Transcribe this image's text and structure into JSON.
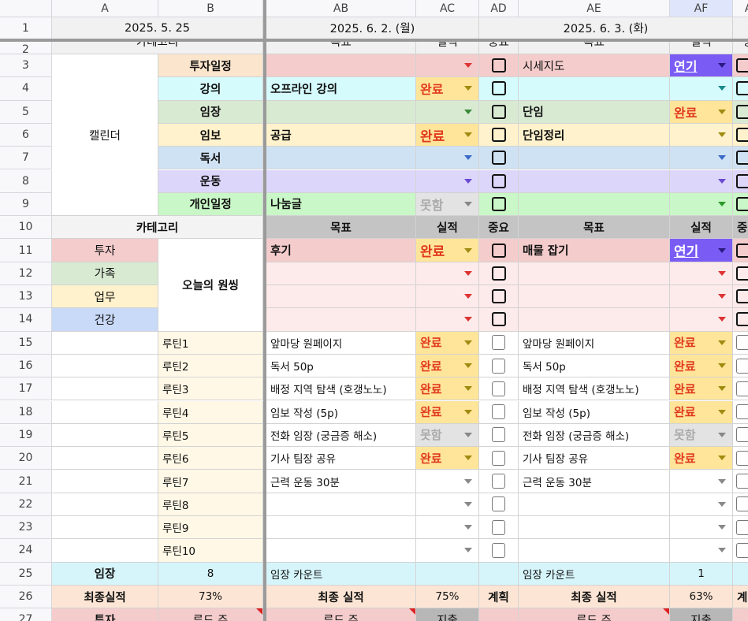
{
  "column_headers": [
    "A",
    "B",
    "AB",
    "AC",
    "AD",
    "AE",
    "AF",
    "A"
  ],
  "selected_column": "AF",
  "status_styles": {
    "완료": {
      "bg": "#ffe599",
      "color": "#e03a1e",
      "arrow": "#a08a10"
    },
    "연기": {
      "bg": "#7a5cf5",
      "color": "#ffffff",
      "arrow": "#2a1a80",
      "underline": true
    },
    "못함": {
      "bg": "#e3e3e3",
      "color": "#aaaaaa",
      "arrow": "#888888"
    }
  },
  "rows": [
    {
      "num": "1",
      "cells": {
        "A": {
          "text": "2025. 5. 25",
          "bg": "#f1f1f1",
          "align": "center"
        },
        "AB": {
          "text": "2025. 6. 2. (월)",
          "bg": "#f1f1f1",
          "align": "center"
        },
        "AD": {
          "text": "2025. 6. 3. (화)",
          "bg": "#f1f1f1",
          "align": "center"
        },
        "AG": {
          "text": "",
          "bg": "#f1f1f1"
        }
      }
    },
    {
      "num": "2",
      "cells": {
        "A": {
          "text": "카테고리",
          "bg": "#f1f1f1",
          "align": "center"
        },
        "AB": {
          "text": "목표",
          "bg": "#f1f1f1",
          "align": "center"
        },
        "AC": {
          "text": "실적",
          "bg": "#f1f1f1",
          "align": "center"
        },
        "AD": {
          "text": "중요",
          "bg": "#f1f1f1",
          "align": "center"
        },
        "AE": {
          "text": "목표",
          "bg": "#f1f1f1",
          "align": "center"
        },
        "AF": {
          "text": "실적",
          "bg": "#f1f1f1",
          "align": "center"
        },
        "AG": {
          "text": "중",
          "bg": "#f1f1f1",
          "align": "center"
        }
      }
    },
    {
      "num": "3",
      "cells": {
        "A": {
          "text": "캘린더",
          "bg": "#ffffff",
          "align": "center"
        },
        "B": {
          "text": "투자일정",
          "bg": "#fce5cd",
          "align": "center",
          "bold": true
        },
        "AB": {
          "text": "",
          "bg": "#f4cccc"
        },
        "AC": {
          "dropdown": true,
          "bg": "#f4cccc",
          "arrow": "#d33"
        },
        "AD": {
          "checkbox": true,
          "bg": "#f4cccc"
        },
        "AE": {
          "text": "시세지도",
          "bg": "#f4cccc"
        },
        "AF": {
          "status": "연기"
        },
        "AG": {
          "checkbox": true,
          "bg": "#f4cccc"
        }
      }
    },
    {
      "num": "4",
      "cells": {
        "B": {
          "text": "강의",
          "bg": "#d6fbfd",
          "align": "center",
          "bold": true
        },
        "AB": {
          "text": "오프라인 강의",
          "bg": "#d6fbfd",
          "bold": true
        },
        "AC": {
          "status": "완료"
        },
        "AD": {
          "checkbox": true,
          "bg": "#d6fbfd"
        },
        "AE": {
          "text": "",
          "bg": "#d6fbfd"
        },
        "AF": {
          "dropdown": true,
          "bg": "#d6fbfd",
          "arrow": "#1a8a8a"
        },
        "AG": {
          "checkbox": true,
          "bg": "#d6fbfd"
        }
      }
    },
    {
      "num": "5",
      "cells": {
        "B": {
          "text": "임장",
          "bg": "#d9ead3",
          "align": "center",
          "bold": true
        },
        "AB": {
          "text": "",
          "bg": "#d9ead3"
        },
        "AC": {
          "dropdown": true,
          "bg": "#d9ead3",
          "arrow": "#3a8a3a"
        },
        "AD": {
          "checkbox": true,
          "bg": "#d9ead3"
        },
        "AE": {
          "text": "단임",
          "bg": "#d9ead3",
          "bold": true
        },
        "AF": {
          "status": "완료"
        },
        "AG": {
          "checkbox": true,
          "bg": "#d9ead3"
        }
      }
    },
    {
      "num": "6",
      "cells": {
        "B": {
          "text": "임보",
          "bg": "#fff2cc",
          "align": "center",
          "bold": true
        },
        "AB": {
          "text": "공급",
          "bg": "#fff2cc",
          "bold": true
        },
        "AC": {
          "status": "완료",
          "large": true
        },
        "AD": {
          "checkbox": true,
          "bg": "#fff2cc"
        },
        "AE": {
          "text": "단임정리",
          "bg": "#fff2cc",
          "bold": true
        },
        "AF": {
          "dropdown": true,
          "bg": "#fff2cc",
          "arrow": "#a08a10"
        },
        "AG": {
          "checkbox": true,
          "bg": "#fff2cc"
        }
      }
    },
    {
      "num": "7",
      "cells": {
        "B": {
          "text": "독서",
          "bg": "#cfe2f3",
          "align": "center",
          "bold": true
        },
        "AB": {
          "text": "",
          "bg": "#cfe2f3"
        },
        "AC": {
          "dropdown": true,
          "bg": "#cfe2f3",
          "arrow": "#3a6ac8"
        },
        "AD": {
          "checkbox": true,
          "bg": "#cfe2f3"
        },
        "AE": {
          "text": "",
          "bg": "#cfe2f3"
        },
        "AF": {
          "dropdown": true,
          "bg": "#cfe2f3",
          "arrow": "#3a6ac8"
        },
        "AG": {
          "checkbox": true,
          "bg": "#cfe2f3"
        }
      }
    },
    {
      "num": "8",
      "cells": {
        "B": {
          "text": "운동",
          "bg": "#ddd6fb",
          "align": "center",
          "bold": true
        },
        "AB": {
          "text": "",
          "bg": "#ddd6fb"
        },
        "AC": {
          "dropdown": true,
          "bg": "#ddd6fb",
          "arrow": "#6a4ad0"
        },
        "AD": {
          "checkbox": true,
          "bg": "#ddd6fb"
        },
        "AE": {
          "text": "",
          "bg": "#ddd6fb"
        },
        "AF": {
          "dropdown": true,
          "bg": "#ddd6fb",
          "arrow": "#6a4ad0"
        },
        "AG": {
          "checkbox": true,
          "bg": "#ddd6fb"
        }
      }
    },
    {
      "num": "9",
      "cells": {
        "B": {
          "text": "개인일정",
          "bg": "#c9f7c7",
          "align": "center",
          "bold": true
        },
        "AB": {
          "text": "나눔글",
          "bg": "#c9f7c7",
          "bold": true
        },
        "AC": {
          "status": "못함"
        },
        "AD": {
          "checkbox": true,
          "bg": "#c9f7c7"
        },
        "AE": {
          "text": "",
          "bg": "#c9f7c7"
        },
        "AF": {
          "dropdown": true,
          "bg": "#c9f7c7",
          "arrow": "#2a9a2a"
        },
        "AG": {
          "checkbox": true,
          "bg": "#c9f7c7"
        }
      }
    },
    {
      "num": "10",
      "cells": {
        "A": {
          "text": "카테고리",
          "bg": "#f3f3f3",
          "align": "center",
          "bold": true
        },
        "AB": {
          "text": "목표",
          "bg": "#c4c4c4",
          "align": "center",
          "bold": true
        },
        "AC": {
          "text": "실적",
          "bg": "#c4c4c4",
          "align": "center",
          "bold": true
        },
        "AD": {
          "text": "중요",
          "bg": "#c4c4c4",
          "align": "center",
          "bold": true
        },
        "AE": {
          "text": "목표",
          "bg": "#c4c4c4",
          "align": "center",
          "bold": true
        },
        "AF": {
          "text": "실적",
          "bg": "#c4c4c4",
          "align": "center",
          "bold": true
        },
        "AG": {
          "text": "중",
          "bg": "#c4c4c4",
          "bold": true
        }
      }
    },
    {
      "num": "11",
      "cells": {
        "A": {
          "text": "투자",
          "bg": "#f4cccc",
          "align": "center"
        },
        "B": {
          "text": "오늘의 원씽",
          "bg": "#ffffff",
          "align": "center",
          "bold": true
        },
        "AB": {
          "text": "후기",
          "bg": "#f4cccc",
          "bold": true
        },
        "AC": {
          "status": "완료",
          "large": true
        },
        "AD": {
          "checkbox": true,
          "bg": "#f4cccc"
        },
        "AE": {
          "text": "매물 잡기",
          "bg": "#f4cccc",
          "bold": true
        },
        "AF": {
          "status": "연기",
          "large": true
        },
        "AG": {
          "checkbox": true,
          "bg": "#f4cccc"
        }
      }
    },
    {
      "num": "12",
      "cells": {
        "A": {
          "text": "가족",
          "bg": "#d9ead3",
          "align": "center"
        },
        "AB": {
          "text": "",
          "bg": "#fdeaea"
        },
        "AC": {
          "dropdown": true,
          "bg": "#fdeaea",
          "arrow": "#d33"
        },
        "AD": {
          "checkbox": true,
          "bg": "#fdeaea"
        },
        "AE": {
          "text": "",
          "bg": "#fdeaea"
        },
        "AF": {
          "dropdown": true,
          "bg": "#fdeaea",
          "arrow": "#d33"
        },
        "AG": {
          "checkbox": true,
          "bg": "#fdeaea"
        }
      }
    },
    {
      "num": "13",
      "cells": {
        "A": {
          "text": "업무",
          "bg": "#fff2cc",
          "align": "center"
        },
        "AB": {
          "text": "",
          "bg": "#fdeaea"
        },
        "AC": {
          "dropdown": true,
          "bg": "#fdeaea",
          "arrow": "#d33"
        },
        "AD": {
          "checkbox": true,
          "bg": "#fdeaea"
        },
        "AE": {
          "text": "",
          "bg": "#fdeaea"
        },
        "AF": {
          "dropdown": true,
          "bg": "#fdeaea",
          "arrow": "#d33"
        },
        "AG": {
          "checkbox": true,
          "bg": "#fdeaea"
        }
      }
    },
    {
      "num": "14",
      "cells": {
        "A": {
          "text": "건강",
          "bg": "#c9daf8",
          "align": "center"
        },
        "AB": {
          "text": "",
          "bg": "#fdeaea"
        },
        "AC": {
          "dropdown": true,
          "bg": "#fdeaea",
          "arrow": "#d33"
        },
        "AD": {
          "checkbox": true,
          "bg": "#fdeaea"
        },
        "AE": {
          "text": "",
          "bg": "#fdeaea"
        },
        "AF": {
          "dropdown": true,
          "bg": "#fdeaea",
          "arrow": "#d33"
        },
        "AG": {
          "checkbox": true,
          "bg": "#fdeaea"
        }
      }
    },
    {
      "num": "15",
      "routine": true,
      "cells": {
        "B": {
          "text": "루틴1"
        },
        "AB": {
          "text": "앞마당 원페이지"
        },
        "AC": {
          "status": "완료"
        },
        "AE": {
          "text": "앞마당 원페이지"
        },
        "AF": {
          "status": "완료"
        }
      }
    },
    {
      "num": "16",
      "routine": true,
      "cells": {
        "B": {
          "text": "루틴2"
        },
        "AB": {
          "text": "독서 50p"
        },
        "AC": {
          "status": "완료"
        },
        "AE": {
          "text": "독서 50p"
        },
        "AF": {
          "status": "완료"
        }
      }
    },
    {
      "num": "17",
      "routine": true,
      "cells": {
        "B": {
          "text": "루틴3"
        },
        "AB": {
          "text": "배정 지역 탐색 (호갱노노)"
        },
        "AC": {
          "status": "완료"
        },
        "AE": {
          "text": "배정 지역 탐색 (호갱노노)"
        },
        "AF": {
          "status": "완료"
        }
      }
    },
    {
      "num": "18",
      "routine": true,
      "cells": {
        "B": {
          "text": "루틴4"
        },
        "AB": {
          "text": "임보 작성 (5p)"
        },
        "AC": {
          "status": "완료"
        },
        "AE": {
          "text": "임보 작성 (5p)"
        },
        "AF": {
          "status": "완료"
        }
      }
    },
    {
      "num": "19",
      "routine": true,
      "cells": {
        "B": {
          "text": "루틴5"
        },
        "AB": {
          "text": "전화 임장 (궁금증 해소)"
        },
        "AC": {
          "status": "못함"
        },
        "AE": {
          "text": "전화 임장 (궁금증 해소)"
        },
        "AF": {
          "status": "못함"
        }
      }
    },
    {
      "num": "20",
      "routine": true,
      "cells": {
        "B": {
          "text": "루틴6"
        },
        "AB": {
          "text": "기사 팀장 공유"
        },
        "AC": {
          "status": "완료"
        },
        "AE": {
          "text": "기사 팀장 공유"
        },
        "AF": {
          "status": "완료"
        }
      }
    },
    {
      "num": "21",
      "routine": true,
      "cells": {
        "B": {
          "text": "루틴7"
        },
        "AB": {
          "text": "근력 운동 30분"
        },
        "AE": {
          "text": "근력 운동 30분"
        }
      }
    },
    {
      "num": "22",
      "routine": true,
      "cells": {
        "B": {
          "text": "루틴8"
        }
      }
    },
    {
      "num": "23",
      "routine": true,
      "cells": {
        "B": {
          "text": "루틴9"
        }
      }
    },
    {
      "num": "24",
      "routine": true,
      "cells": {
        "B": {
          "text": "루틴10"
        }
      }
    },
    {
      "num": "25",
      "cells": {
        "A": {
          "text": "임장",
          "bg": "#d6f5fb",
          "align": "center",
          "bold": true
        },
        "B": {
          "text": "8",
          "bg": "#d6f5fb",
          "align": "center",
          "small": true
        },
        "AB": {
          "text": "임장 카운트",
          "bg": "#d6f5fb",
          "small": true
        },
        "AC": {
          "text": "",
          "bg": "#d6f5fb"
        },
        "AD": {
          "text": "",
          "bg": "#d6f5fb"
        },
        "AE": {
          "text": "임장 카운트",
          "bg": "#d6f5fb",
          "small": true
        },
        "AF": {
          "text": "1",
          "bg": "#d6f5fb",
          "align": "center",
          "small": true
        },
        "AG": {
          "text": "",
          "bg": "#d6f5fb"
        }
      }
    },
    {
      "num": "26",
      "cells": {
        "A": {
          "text": "최종실적",
          "bg": "#fce5d4",
          "align": "center",
          "bold": true
        },
        "B": {
          "text": "73%",
          "bg": "#fce5d4",
          "align": "center",
          "small": true
        },
        "AB": {
          "text": "최종 실적",
          "bg": "#fce5d4",
          "align": "center",
          "bold": true
        },
        "AC": {
          "text": "75%",
          "bg": "#fce5d4",
          "align": "center",
          "small": true
        },
        "AD": {
          "text": "계획",
          "bg": "#fce5d4",
          "align": "center",
          "bold": true
        },
        "AE": {
          "text": "최종 실적",
          "bg": "#fce5d4",
          "align": "center",
          "bold": true
        },
        "AF": {
          "text": "63%",
          "bg": "#fce5d4",
          "align": "center",
          "small": true
        },
        "AG": {
          "text": "계",
          "bg": "#fce5d4",
          "bold": true
        }
      }
    },
    {
      "num": "27",
      "cells": {
        "A": {
          "text": "투자",
          "bg": "#f4cccc",
          "align": "center",
          "bold": true
        },
        "B": {
          "text": "루드 주",
          "bg": "#f4cccc",
          "align": "center",
          "note": true
        },
        "AB": {
          "text": "루드 주",
          "bg": "#f4cccc",
          "align": "center",
          "note": true
        },
        "AC": {
          "text": "지출",
          "bg": "#b7b7b7",
          "align": "center"
        },
        "AD": {
          "text": "",
          "bg": "#f4cccc"
        },
        "AE": {
          "text": "루드 주",
          "bg": "#f4cccc",
          "align": "center",
          "note": true
        },
        "AF": {
          "text": "지출",
          "bg": "#b7b7b7",
          "align": "center"
        },
        "AG": {
          "text": "",
          "bg": "#f4cccc"
        }
      }
    }
  ]
}
